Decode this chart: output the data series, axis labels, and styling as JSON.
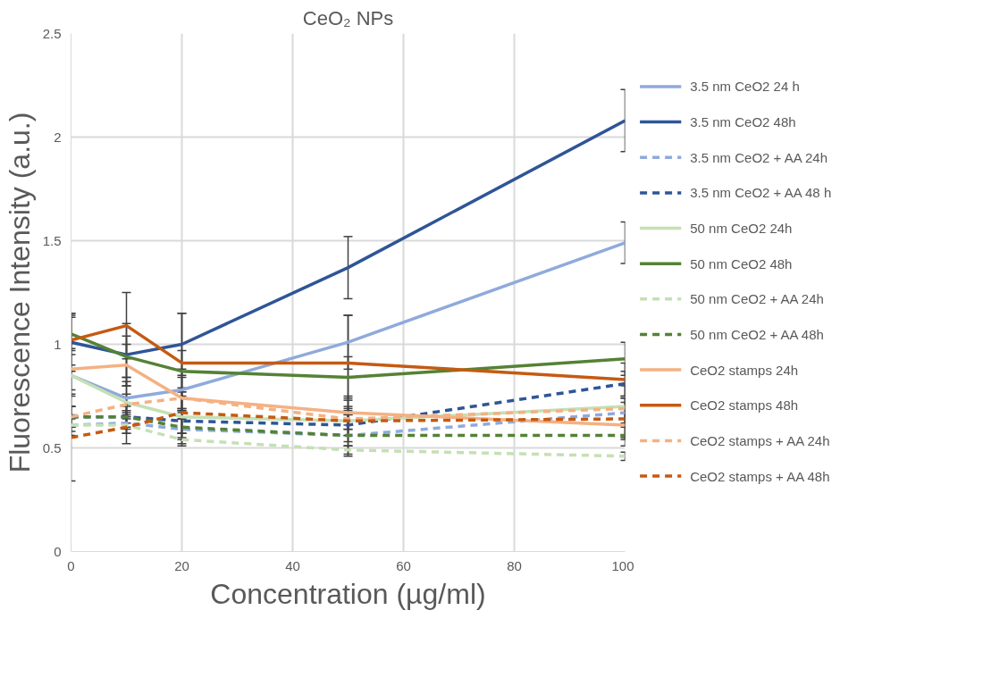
{
  "chart_data": {
    "type": "line",
    "title": "CeO₂ NPs",
    "xlabel": "Concentration (µg/ml)",
    "ylabel": "Fluorescence Intensity (a.u.)",
    "x": [
      0,
      10,
      20,
      50,
      100
    ],
    "xlim": [
      0,
      100
    ],
    "xticks": [
      0,
      20,
      40,
      60,
      80,
      100
    ],
    "ylim": [
      0,
      2.5
    ],
    "yticks": [
      0,
      0.5,
      1,
      {
        "value": 1.5,
        "label": "1.5"
      },
      2,
      {
        "value": 2.5,
        "label": "2.5"
      }
    ],
    "grid": true,
    "legend": "right",
    "series": [
      {
        "name": "3.5 nm CeO2 24 h",
        "color": "#8faadc",
        "line_style": "solid",
        "values": [
          0.85,
          0.74,
          0.78,
          1.01,
          1.49
        ],
        "errors": [
          0.1,
          0.1,
          0.1,
          0.13,
          0.1
        ]
      },
      {
        "name": "3.5 nm CeO2 48h",
        "color": "#2f5597",
        "line_style": "solid",
        "values": [
          1.01,
          0.95,
          1.0,
          1.37,
          2.08
        ],
        "errors": [
          0.14,
          0.15,
          0.15,
          0.15,
          0.15
        ]
      },
      {
        "name": "3.5 nm CeO2 + AA 24h",
        "color": "#8faadc",
        "line_style": "dashed",
        "values": [
          0.61,
          0.62,
          0.59,
          0.56,
          0.67
        ],
        "errors": [
          0.05,
          0.05,
          0.05,
          0.1,
          0.05
        ]
      },
      {
        "name": "3.5 nm CeO2 + AA 48 h",
        "color": "#2f5597",
        "line_style": "dashed",
        "values": [
          0.65,
          0.65,
          0.63,
          0.61,
          0.81
        ],
        "errors": [
          0.05,
          0.06,
          0.06,
          0.05,
          0.06
        ]
      },
      {
        "name": "50 nm CeO2 24h",
        "color": "#c5e0b4",
        "line_style": "solid",
        "values": [
          0.85,
          0.72,
          0.65,
          0.63,
          0.7
        ],
        "errors": [
          0.3,
          0.1,
          0.1,
          0.1,
          0.1
        ]
      },
      {
        "name": "50 nm CeO2 48h",
        "color": "#548235",
        "line_style": "solid",
        "values": [
          1.05,
          0.94,
          0.87,
          0.84,
          0.93
        ],
        "errors": [
          0.08,
          0.1,
          0.1,
          0.1,
          0.08
        ]
      },
      {
        "name": "50 nm CeO2 + AA 24h",
        "color": "#c5e0b4",
        "line_style": "dashed",
        "values": [
          0.61,
          0.61,
          0.54,
          0.49,
          0.46
        ],
        "errors": [
          0.03,
          0.04,
          0.03,
          0.02,
          0.02
        ]
      },
      {
        "name": "50 nm CeO2 + AA 48h",
        "color": "#548235",
        "line_style": "dashed",
        "values": [
          0.65,
          0.65,
          0.6,
          0.56,
          0.56
        ],
        "errors": [
          0.05,
          0.05,
          0.08,
          0.05,
          0.05
        ]
      },
      {
        "name": "CeO2 stamps 24h",
        "color": "#f4b183",
        "line_style": "solid",
        "values": [
          0.88,
          0.9,
          0.74,
          0.67,
          0.61
        ],
        "errors": [
          0.1,
          0.1,
          0.1,
          0.08,
          0.06
        ]
      },
      {
        "name": "CeO2 stamps 48h",
        "color": "#c55a11",
        "line_style": "solid",
        "values": [
          1.02,
          1.09,
          0.91,
          0.91,
          0.83
        ],
        "errors": [
          0.12,
          0.16,
          0.24,
          0.23,
          0.08
        ]
      },
      {
        "name": "CeO2 stamps + AA 24h",
        "color": "#f4b183",
        "line_style": "dashed",
        "values": [
          0.65,
          0.71,
          0.74,
          0.64,
          0.69
        ],
        "errors": [
          0.05,
          0.05,
          0.05,
          0.05,
          0.05
        ]
      },
      {
        "name": "CeO2 stamps + AA 48h",
        "color": "#c55a11",
        "line_style": "dashed",
        "values": [
          0.55,
          0.6,
          0.67,
          0.63,
          0.64
        ],
        "errors": [
          0.21,
          0.08,
          0.1,
          0.07,
          0.1
        ]
      }
    ]
  }
}
